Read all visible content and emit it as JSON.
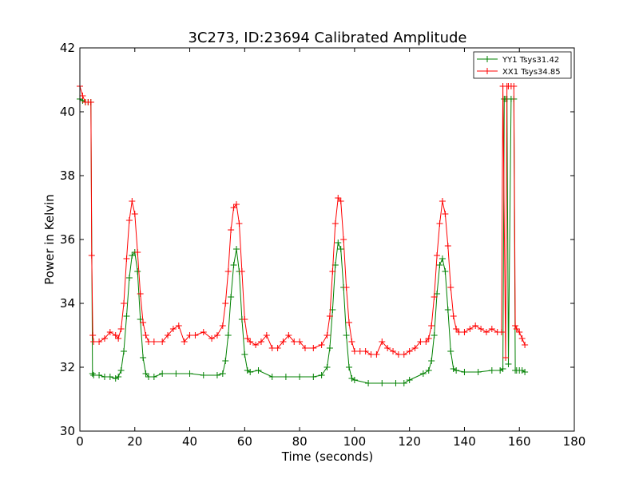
{
  "chart_data": {
    "type": "line",
    "title": "3C273, ID:23694 Calibrated Amplitude",
    "xlabel": "Time (seconds)",
    "ylabel": "Power in Kelvin",
    "xlim": [
      0,
      180
    ],
    "ylim": [
      30,
      42
    ],
    "xticks": [
      0,
      20,
      40,
      60,
      80,
      100,
      120,
      140,
      160,
      180
    ],
    "yticks": [
      30,
      32,
      34,
      36,
      38,
      40,
      42
    ],
    "grid": false,
    "legend_position": "top-right",
    "series": [
      {
        "name": "YY1 Tsys31.42",
        "color": "#008000",
        "x": [
          0,
          1,
          2,
          3,
          4,
          4.6,
          5,
          7,
          9,
          11,
          13,
          14,
          15,
          16,
          17,
          18,
          19,
          20,
          21,
          22,
          23,
          24,
          25,
          27,
          30,
          35,
          40,
          45,
          50,
          52,
          53,
          54,
          55,
          56,
          57,
          58,
          59,
          60,
          61,
          62,
          65,
          70,
          75,
          80,
          85,
          88,
          90,
          91,
          92,
          93,
          94,
          95,
          96,
          97,
          98,
          99,
          100,
          105,
          110,
          115,
          118,
          120,
          125,
          127,
          128,
          129,
          130,
          131,
          132,
          133,
          134,
          135,
          136,
          137,
          140,
          145,
          150,
          153,
          154,
          154.5,
          155,
          155.5,
          156,
          157,
          158,
          158.5,
          159,
          160,
          161,
          162
        ],
        "y": [
          40.4,
          40.35,
          40.3,
          40.3,
          40.3,
          31.8,
          31.75,
          31.75,
          31.7,
          31.7,
          31.65,
          31.7,
          31.9,
          32.5,
          33.6,
          34.8,
          35.5,
          35.6,
          35.0,
          33.5,
          32.3,
          31.8,
          31.7,
          31.7,
          31.8,
          31.8,
          31.8,
          31.75,
          31.75,
          31.8,
          32.2,
          33.0,
          34.2,
          35.2,
          35.7,
          35.0,
          33.5,
          32.4,
          31.9,
          31.85,
          31.9,
          31.7,
          31.7,
          31.7,
          31.7,
          31.75,
          32.0,
          32.6,
          33.8,
          35.2,
          35.9,
          35.7,
          34.5,
          33.0,
          32.0,
          31.65,
          31.6,
          31.5,
          31.5,
          31.5,
          31.5,
          31.6,
          31.8,
          31.9,
          32.2,
          33.0,
          34.3,
          35.2,
          35.4,
          35.0,
          33.8,
          32.5,
          31.95,
          31.9,
          31.85,
          31.85,
          31.9,
          31.9,
          31.95,
          40.4,
          40.4,
          40.4,
          32.1,
          40.4,
          40.4,
          31.9,
          31.9,
          31.9,
          31.9,
          31.85
        ]
      },
      {
        "name": "XX1 Tsys34.85",
        "color": "#ff0000",
        "x": [
          0,
          1,
          2,
          3,
          4,
          4.3,
          4.7,
          5,
          7,
          9,
          11,
          13,
          14,
          15,
          16,
          17,
          18,
          19,
          20,
          21,
          22,
          23,
          24,
          25,
          27,
          30,
          32,
          34,
          36,
          38,
          40,
          42,
          45,
          48,
          50,
          52,
          53,
          54,
          55,
          56,
          57,
          58,
          59,
          60,
          61,
          62,
          64,
          66,
          68,
          70,
          72,
          74,
          76,
          78,
          80,
          82,
          85,
          88,
          90,
          91,
          92,
          93,
          94,
          95,
          96,
          97,
          98,
          99,
          100,
          102,
          104,
          106,
          108,
          110,
          112,
          114,
          116,
          118,
          120,
          122,
          124,
          126,
          127,
          128,
          129,
          130,
          131,
          132,
          133,
          134,
          135,
          136,
          137,
          138,
          140,
          142,
          144,
          146,
          148,
          150,
          152,
          153.5,
          154,
          155,
          155.5,
          156,
          157,
          158,
          158.5,
          159,
          160,
          161,
          162
        ],
        "y": [
          40.8,
          40.5,
          40.3,
          40.3,
          40.3,
          35.5,
          33.0,
          32.8,
          32.8,
          32.9,
          33.1,
          33.0,
          32.9,
          33.2,
          34.0,
          35.4,
          36.6,
          37.2,
          36.8,
          35.6,
          34.3,
          33.4,
          33.0,
          32.8,
          32.8,
          32.8,
          33.0,
          33.2,
          33.3,
          32.8,
          33.0,
          33.0,
          33.1,
          32.9,
          33.0,
          33.3,
          34.0,
          35.0,
          36.3,
          37.0,
          37.1,
          36.5,
          35.0,
          33.5,
          32.9,
          32.8,
          32.7,
          32.8,
          33.0,
          32.6,
          32.6,
          32.8,
          33.0,
          32.8,
          32.8,
          32.6,
          32.6,
          32.7,
          33.0,
          33.6,
          35.0,
          36.5,
          37.3,
          37.2,
          36.0,
          34.5,
          33.4,
          32.8,
          32.5,
          32.5,
          32.5,
          32.4,
          32.4,
          32.8,
          32.6,
          32.5,
          32.4,
          32.4,
          32.5,
          32.6,
          32.8,
          32.8,
          32.9,
          33.3,
          34.2,
          35.5,
          36.5,
          37.2,
          36.8,
          35.8,
          34.5,
          33.6,
          33.2,
          33.1,
          33.1,
          33.2,
          33.3,
          33.2,
          33.1,
          33.2,
          33.1,
          33.1,
          40.8,
          32.3,
          40.8,
          40.8,
          40.8,
          40.8,
          33.3,
          33.2,
          33.1,
          32.9,
          32.7
        ]
      }
    ]
  }
}
